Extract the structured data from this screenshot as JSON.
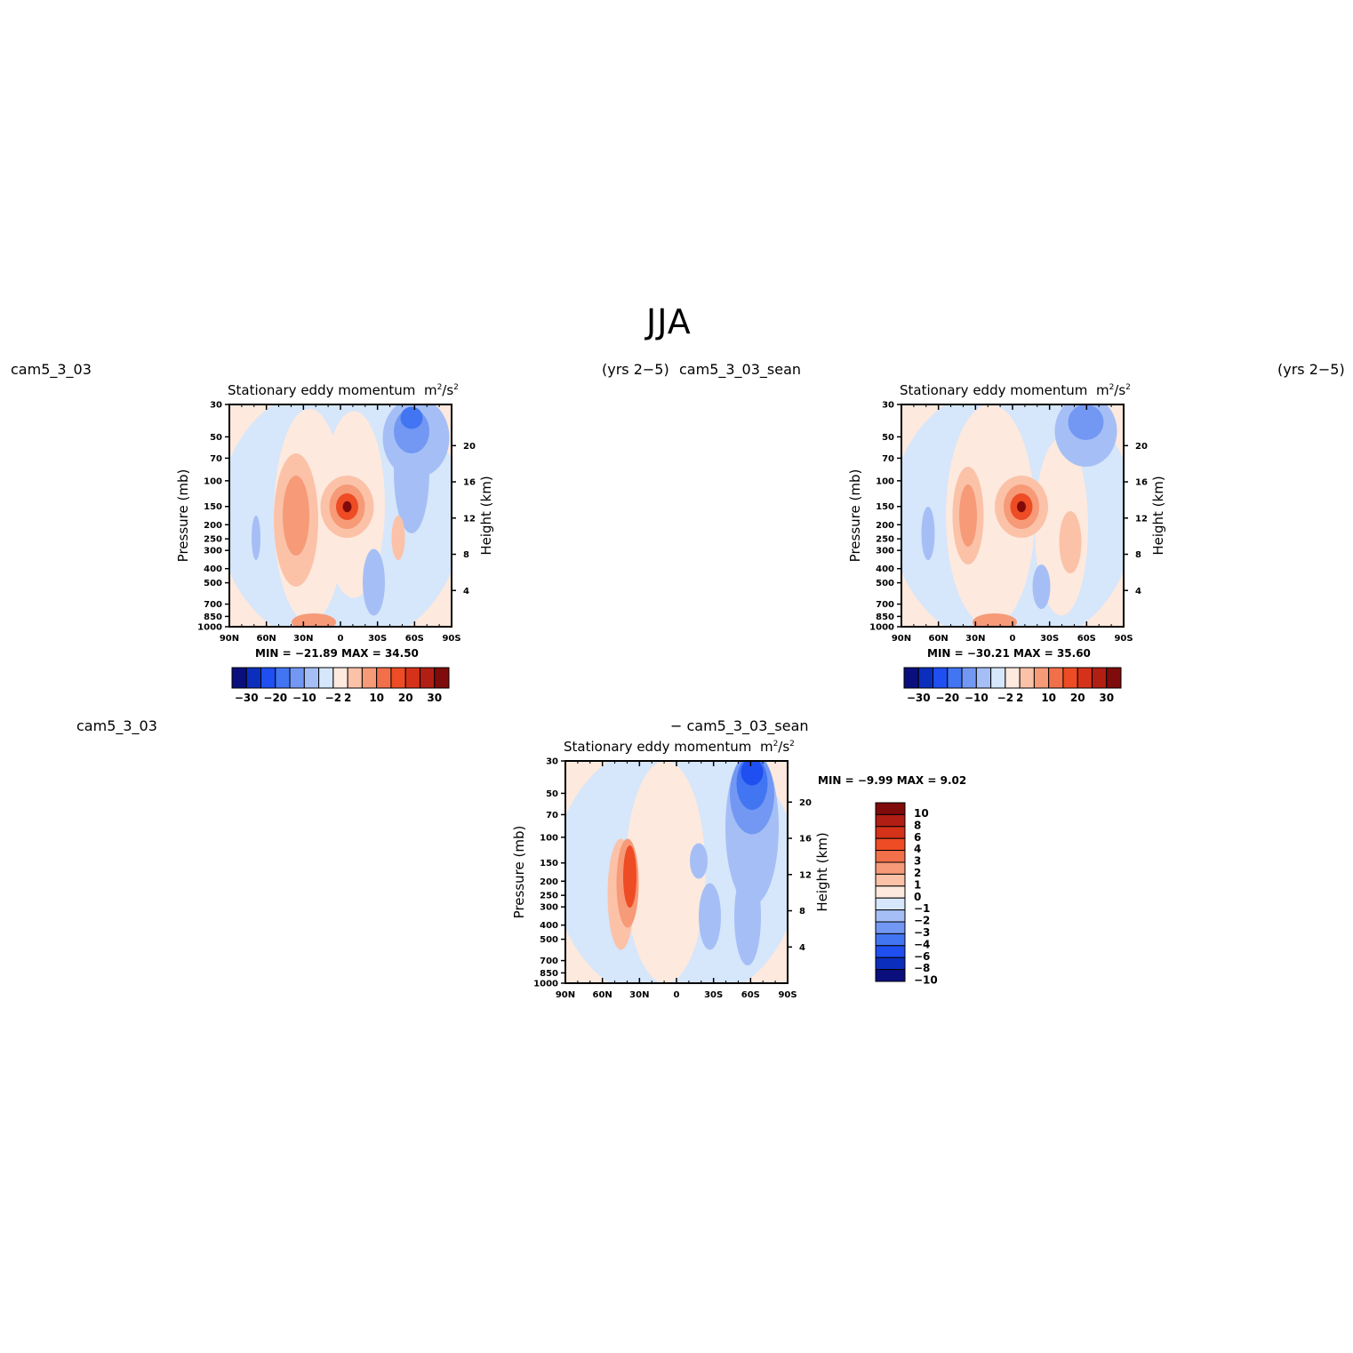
{
  "title": "JJA",
  "panels": [
    {
      "left_label": "cam5_3_03",
      "right_label": "(yrs 2−5)",
      "title": "Stationary eddy momentum",
      "units_main": "m",
      "units_sup": "2",
      "units_slash": "/s",
      "units_sup2": "2",
      "stats": "MIN = −21.89   MAX =   34.50"
    },
    {
      "left_label": "cam5_3_03_sean",
      "right_label": "(yrs 2−5)",
      "title": "Stationary eddy momentum",
      "units_main": "m",
      "units_sup": "2",
      "units_slash": "/s",
      "units_sup2": "2",
      "stats": "MIN = −30.21   MAX =   35.60"
    },
    {
      "left_label": "cam5_3_03",
      "right_label": "− cam5_3_03_sean",
      "title": "Stationary eddy momentum",
      "units_main": "m",
      "units_sup": "2",
      "units_slash": "/s",
      "units_sup2": "2",
      "stats": "MIN =   −9.99   MAX =     9.02"
    }
  ],
  "chart_data": [
    {
      "type": "heatmap",
      "title": "Stationary eddy momentum",
      "xlabel": "",
      "ylabel": "Pressure (mb)",
      "y2label": "Height (km)",
      "x_ticks": [
        "90N",
        "60N",
        "30N",
        "0",
        "30S",
        "60S",
        "90S"
      ],
      "y_ticks": [
        "30",
        "50",
        "70",
        "100",
        "150",
        "200",
        "250",
        "300",
        "400",
        "500",
        "700",
        "850",
        "1000"
      ],
      "y2_ticks": [
        "20",
        "16",
        "12",
        "8",
        "4"
      ],
      "ylim": [
        1000,
        30
      ],
      "colorbar_levels": [
        "−30",
        "−20",
        "−10",
        "−2",
        "2",
        "10",
        "20",
        "30"
      ],
      "min": -21.89,
      "max": 34.5
    },
    {
      "type": "heatmap",
      "title": "Stationary eddy momentum",
      "xlabel": "",
      "ylabel": "Pressure (mb)",
      "y2label": "Height (km)",
      "x_ticks": [
        "90N",
        "60N",
        "30N",
        "0",
        "30S",
        "60S",
        "90S"
      ],
      "y_ticks": [
        "30",
        "50",
        "70",
        "100",
        "150",
        "200",
        "250",
        "300",
        "400",
        "500",
        "700",
        "850",
        "1000"
      ],
      "y2_ticks": [
        "20",
        "16",
        "12",
        "8",
        "4"
      ],
      "ylim": [
        1000,
        30
      ],
      "colorbar_levels": [
        "−30",
        "−20",
        "−10",
        "−2",
        "2",
        "10",
        "20",
        "30"
      ],
      "min": -30.21,
      "max": 35.6
    },
    {
      "type": "heatmap",
      "title": "Stationary eddy momentum",
      "xlabel": "",
      "ylabel": "Pressure (mb)",
      "y2label": "Height (km)",
      "x_ticks": [
        "90N",
        "60N",
        "30N",
        "0",
        "30S",
        "60S",
        "90S"
      ],
      "y_ticks": [
        "30",
        "50",
        "70",
        "100",
        "150",
        "200",
        "250",
        "300",
        "400",
        "500",
        "700",
        "850",
        "1000"
      ],
      "y2_ticks": [
        "20",
        "16",
        "12",
        "8",
        "4"
      ],
      "ylim": [
        1000,
        30
      ],
      "colorbar_levels": [
        "10",
        "8",
        "6",
        "4",
        "3",
        "2",
        "1",
        "0",
        "−1",
        "−2",
        "−3",
        "−4",
        "−6",
        "−8",
        "−10"
      ],
      "min": -9.99,
      "max": 9.02
    }
  ],
  "colors": {
    "abs_scale": [
      "#0a0f7d",
      "#0c2ebd",
      "#1f4ff0",
      "#4275f2",
      "#7398f3",
      "#a5bff6",
      "#d6e6fb",
      "#fde9de",
      "#fbc2a8",
      "#f69a78",
      "#f27049",
      "#ee4c24",
      "#d5321a",
      "#b01e14",
      "#7f0b0b"
    ],
    "diff_scale": [
      "#7f0b0b",
      "#b01e14",
      "#d5321a",
      "#ee4c24",
      "#f27049",
      "#f69a78",
      "#fbc2a8",
      "#fde9de",
      "#d6e6fb",
      "#a5bff6",
      "#7398f3",
      "#4275f2",
      "#1f4ff0",
      "#0c2ebd",
      "#0a0f7d"
    ]
  }
}
